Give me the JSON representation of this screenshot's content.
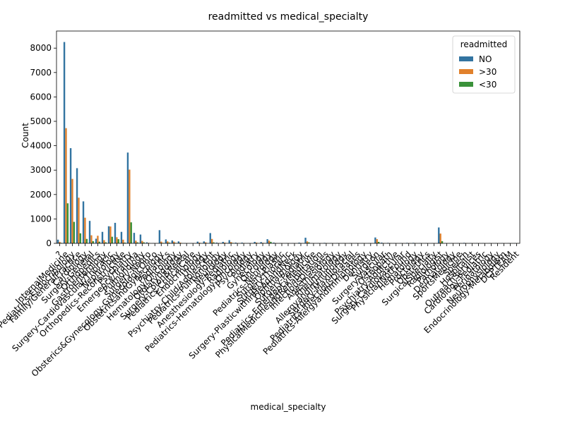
{
  "chart_data": {
    "type": "bar",
    "title": "readmitted vs medical_specialty",
    "xlabel": "medical_specialty",
    "ylabel": "Count",
    "ylim": [
      0,
      8700
    ],
    "yticks": [
      0,
      1000,
      2000,
      3000,
      4000,
      5000,
      6000,
      7000,
      8000
    ],
    "legend": {
      "title": "readmitted",
      "position": "top-right"
    },
    "colors": {
      "NO": "#3274a1",
      ">30": "#e1812c",
      "<30": "#3a923a"
    },
    "categories": [
      "?",
      "InternalMedicine",
      "Pediatrics-Endocrinology",
      "Family/GeneralPractice",
      "Cardiology",
      "Surgery-General",
      "Orthopedics",
      "Gastroenterology",
      "Surgery-Cardiovascular/Thoracic",
      "Nephrology",
      "Orthopedics-Reconstructive",
      "Psychiatry",
      "Emergency/Trauma",
      "Pulmonology",
      "Surgery-Neuro",
      "Obsterics&Gynecology-GynecologicOnco",
      "ObstetricsandGynecology",
      "Pediatrics",
      "Hematology/Oncology",
      "Otolaryngology",
      "Surgery-Colon&Rectal",
      "Pediatrics-CriticalCare",
      "Endocrinology",
      "Urology",
      "Psychiatry-Child/Adolescent",
      "Pediatrics-Pulmonology",
      "Neurology",
      "Anesthesiology-Pediatric",
      "Radiology",
      "Pediatrics-Hematology-Oncology",
      "Psychology",
      "Podiatry",
      "Gynecology",
      "Oncology",
      "Pediatrics-Neurology",
      "Surgery-Plastic",
      "Surgery-Thoracic",
      "Surgery-PlasticwithinHeadandNeck",
      "Ophthalmology",
      "Surgery-Pediatric",
      "Pediatrics-EmergencyMedicine",
      "PhysicalMedicineandRehabilitation",
      "InfectiousDiseases",
      "Anesthesiology",
      "Rheumatology",
      "AllergyandImmunology",
      "Surgery-Maxillofacial",
      "Pediatrics-InfectiousDiseases",
      "Pediatrics-AllergyandImmunology",
      "Dentistry",
      "Surgeon",
      "Surgery-Vascular",
      "Osteopath",
      "Psychiatry-Addictive",
      "Surgery-Cardiovascular",
      "PhysicianNotFound",
      "Hematology",
      "Proctology",
      "Obstetrics",
      "SurgicalSpecialty",
      "Radiologist",
      "Pathology",
      "Dermatology",
      "SportsMedicine",
      "Speech",
      "Hospitalist",
      "OutreachServices",
      "Cardiology-Pediatric",
      "Perinatology",
      "Neurophysiology",
      "Endocrinology-Metabolism",
      "DCPTEAM",
      "Resident"
    ],
    "series": [
      {
        "name": "NO",
        "values": [
          150,
          8250,
          3900,
          3080,
          1720,
          920,
          190,
          470,
          700,
          840,
          470,
          3720,
          430,
          360,
          40,
          10,
          540,
          160,
          120,
          80,
          10,
          10,
          70,
          80,
          420,
          30,
          60,
          130,
          30,
          30,
          10,
          60,
          50,
          170,
          30,
          10,
          10,
          10,
          30,
          230,
          10,
          10,
          20,
          10,
          10,
          10,
          10,
          10,
          10,
          10,
          240,
          30,
          20,
          10,
          10,
          20,
          20,
          10,
          10,
          10,
          650,
          10,
          10,
          10,
          20,
          10,
          10,
          10,
          10,
          10,
          10,
          10,
          10
        ]
      },
      {
        "name": ">30",
        "values": [
          60,
          4720,
          2640,
          1870,
          1050,
          330,
          310,
          130,
          690,
          250,
          150,
          3020,
          110,
          100,
          20,
          5,
          70,
          80,
          70,
          30,
          5,
          5,
          30,
          40,
          180,
          10,
          30,
          50,
          10,
          10,
          5,
          30,
          20,
          110,
          10,
          5,
          5,
          5,
          10,
          80,
          5,
          5,
          10,
          5,
          5,
          5,
          5,
          5,
          5,
          5,
          170,
          10,
          10,
          5,
          5,
          10,
          10,
          5,
          5,
          5,
          400,
          5,
          5,
          5,
          10,
          5,
          5,
          5,
          5,
          5,
          5,
          5,
          5
        ]
      },
      {
        "name": "<30",
        "values": [
          20,
          1640,
          880,
          410,
          180,
          90,
          70,
          40,
          270,
          170,
          30,
          860,
          40,
          40,
          5,
          2,
          20,
          30,
          20,
          10,
          2,
          2,
          10,
          10,
          40,
          5,
          10,
          20,
          5,
          5,
          2,
          10,
          10,
          60,
          5,
          2,
          2,
          2,
          5,
          40,
          2,
          2,
          5,
          2,
          2,
          2,
          2,
          2,
          2,
          2,
          60,
          5,
          5,
          2,
          2,
          5,
          5,
          2,
          2,
          2,
          90,
          2,
          2,
          2,
          5,
          2,
          2,
          2,
          2,
          2,
          2,
          2,
          2
        ]
      }
    ]
  }
}
